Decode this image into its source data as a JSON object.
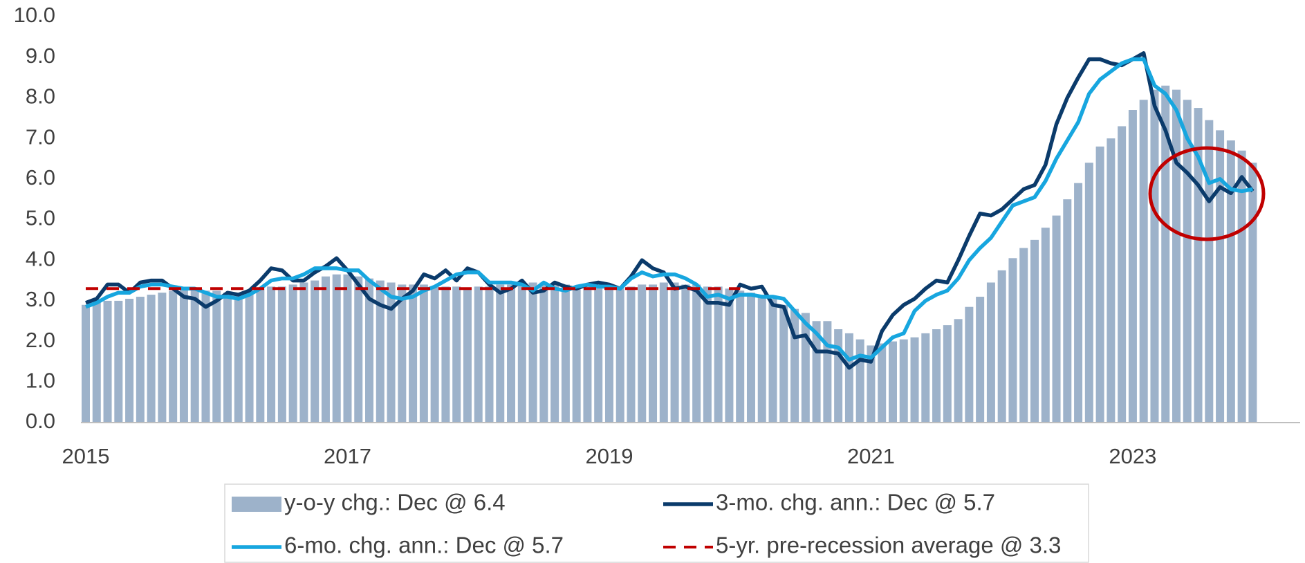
{
  "chart_data": {
    "type": "bar",
    "categories": [
      "2015",
      null,
      null,
      null,
      null,
      null,
      null,
      null,
      null,
      null,
      null,
      null,
      null,
      null,
      null,
      null,
      null,
      null,
      null,
      null,
      null,
      null,
      null,
      null,
      "2017",
      null,
      null,
      null,
      null,
      null,
      null,
      null,
      null,
      null,
      null,
      null,
      null,
      null,
      null,
      null,
      null,
      null,
      null,
      null,
      null,
      null,
      null,
      null,
      "2019",
      null,
      null,
      null,
      null,
      null,
      null,
      null,
      null,
      null,
      null,
      null,
      null,
      null,
      null,
      null,
      null,
      null,
      null,
      null,
      null,
      null,
      null,
      null,
      "2021",
      null,
      null,
      null,
      null,
      null,
      null,
      null,
      null,
      null,
      null,
      null,
      null,
      null,
      null,
      null,
      null,
      null,
      null,
      null,
      null,
      null,
      null,
      null,
      "2023",
      null,
      null,
      null,
      null,
      null,
      null,
      null,
      null,
      null,
      null,
      null
    ],
    "series": [
      {
        "name": "y-o-y chg.: Dec @ 6.4",
        "type": "bar",
        "color": "#9db2ca",
        "values": [
          2.9,
          2.95,
          3.0,
          3.0,
          3.05,
          3.1,
          3.15,
          3.2,
          3.25,
          3.3,
          3.3,
          3.25,
          3.25,
          3.2,
          3.2,
          3.25,
          3.3,
          3.35,
          3.35,
          3.4,
          3.45,
          3.5,
          3.6,
          3.65,
          3.65,
          3.6,
          3.55,
          3.5,
          3.45,
          3.4,
          3.4,
          3.4,
          3.35,
          3.35,
          3.35,
          3.3,
          3.35,
          3.35,
          3.4,
          3.4,
          3.45,
          3.45,
          3.45,
          3.4,
          3.4,
          3.35,
          3.35,
          3.35,
          3.35,
          3.35,
          3.35,
          3.4,
          3.4,
          3.45,
          3.45,
          3.4,
          3.4,
          3.35,
          3.35,
          3.3,
          3.25,
          3.2,
          3.15,
          3.05,
          2.9,
          2.8,
          2.7,
          2.5,
          2.5,
          2.3,
          2.2,
          2.05,
          1.9,
          1.95,
          2.0,
          2.05,
          2.1,
          2.2,
          2.3,
          2.4,
          2.55,
          2.85,
          3.1,
          3.45,
          3.75,
          4.05,
          4.3,
          4.5,
          4.8,
          5.1,
          5.5,
          5.9,
          6.4,
          6.8,
          7.0,
          7.3,
          7.7,
          7.95,
          8.2,
          8.3,
          8.2,
          7.95,
          7.75,
          7.45,
          7.2,
          6.95,
          6.7,
          6.4
        ]
      },
      {
        "name": "3-mo. chg. ann.: Dec @ 5.7",
        "type": "line",
        "color": "#0b3b6b",
        "values": [
          2.95,
          3.05,
          3.4,
          3.4,
          3.2,
          3.45,
          3.5,
          3.5,
          3.3,
          3.1,
          3.05,
          2.85,
          3.0,
          3.2,
          3.15,
          3.25,
          3.5,
          3.8,
          3.75,
          3.5,
          3.5,
          3.7,
          3.85,
          4.05,
          3.75,
          3.4,
          3.05,
          2.9,
          2.8,
          3.05,
          3.25,
          3.65,
          3.55,
          3.75,
          3.5,
          3.8,
          3.7,
          3.4,
          3.2,
          3.3,
          3.5,
          3.2,
          3.25,
          3.45,
          3.35,
          3.3,
          3.4,
          3.45,
          3.4,
          3.3,
          3.6,
          4.0,
          3.8,
          3.7,
          3.3,
          3.35,
          3.25,
          2.95,
          2.95,
          2.9,
          3.4,
          3.3,
          3.35,
          2.9,
          2.85,
          2.1,
          2.15,
          1.75,
          1.75,
          1.7,
          1.35,
          1.55,
          1.5,
          2.25,
          2.65,
          2.9,
          3.05,
          3.3,
          3.5,
          3.45,
          4.0,
          4.6,
          5.15,
          5.1,
          5.25,
          5.5,
          5.75,
          5.85,
          6.35,
          7.35,
          8.0,
          8.5,
          8.95,
          8.95,
          8.85,
          8.8,
          8.95,
          9.1,
          7.8,
          7.2,
          6.4,
          6.15,
          5.85,
          5.45,
          5.8,
          5.65,
          6.05,
          5.7
        ]
      },
      {
        "name": "6-mo. chg. ann.: Dec @ 5.7",
        "type": "line",
        "color": "#17a6df",
        "values": [
          2.85,
          2.95,
          3.1,
          3.2,
          3.2,
          3.35,
          3.4,
          3.4,
          3.35,
          3.3,
          3.3,
          3.2,
          3.1,
          3.1,
          3.05,
          3.15,
          3.3,
          3.5,
          3.55,
          3.55,
          3.65,
          3.8,
          3.8,
          3.8,
          3.75,
          3.75,
          3.5,
          3.3,
          3.1,
          3.05,
          3.1,
          3.25,
          3.35,
          3.5,
          3.65,
          3.7,
          3.7,
          3.45,
          3.45,
          3.45,
          3.4,
          3.25,
          3.45,
          3.3,
          3.25,
          3.35,
          3.4,
          3.35,
          3.35,
          3.3,
          3.55,
          3.7,
          3.6,
          3.65,
          3.65,
          3.55,
          3.4,
          3.1,
          3.15,
          3.05,
          3.15,
          3.15,
          3.1,
          3.1,
          3.05,
          2.75,
          2.45,
          2.2,
          1.9,
          1.85,
          1.55,
          1.65,
          1.6,
          1.85,
          2.1,
          2.2,
          2.75,
          3.0,
          3.15,
          3.25,
          3.55,
          4.0,
          4.3,
          4.55,
          4.95,
          5.35,
          5.45,
          5.55,
          5.95,
          6.5,
          6.95,
          7.4,
          8.1,
          8.45,
          8.65,
          8.85,
          8.95,
          8.95,
          8.3,
          8.1,
          7.7,
          7.0,
          6.55,
          5.9,
          6.0,
          5.75,
          5.7,
          5.75
        ]
      },
      {
        "name": "5-yr. pre-recession average @ 3.3",
        "type": "line",
        "dash": true,
        "color": "#c00000",
        "values": [
          3.3,
          3.3,
          3.3,
          3.3,
          3.3,
          3.3,
          3.3,
          3.3,
          3.3,
          3.3,
          3.3,
          3.3,
          3.3,
          3.3,
          3.3,
          3.3,
          3.3,
          3.3,
          3.3,
          3.3,
          3.3,
          3.3,
          3.3,
          3.3,
          3.3,
          3.3,
          3.3,
          3.3,
          3.3,
          3.3,
          3.3,
          3.3,
          3.3,
          3.3,
          3.3,
          3.3,
          3.3,
          3.3,
          3.3,
          3.3,
          3.3,
          3.3,
          3.3,
          3.3,
          3.3,
          3.3,
          3.3,
          3.3,
          3.3,
          3.3,
          3.3,
          3.3,
          3.3,
          3.3,
          3.3,
          3.3,
          3.3,
          3.3,
          3.3,
          3.3,
          3.3,
          null,
          null,
          null,
          null,
          null,
          null,
          null,
          null,
          null,
          null,
          null,
          null,
          null,
          null,
          null,
          null,
          null,
          null,
          null,
          null,
          null,
          null,
          null,
          null,
          null,
          null,
          null,
          null,
          null,
          null,
          null,
          null,
          null,
          null,
          null,
          null,
          null,
          null,
          null,
          null,
          null,
          null,
          null,
          null,
          null,
          null,
          null
        ]
      }
    ],
    "ylim": [
      0,
      10
    ],
    "yticks": [
      {
        "value": 0,
        "label": "0.0"
      },
      {
        "value": 1,
        "label": "1.0"
      },
      {
        "value": 2,
        "label": "2.0"
      },
      {
        "value": 3,
        "label": "3.0"
      },
      {
        "value": 4,
        "label": "4.0"
      },
      {
        "value": 5,
        "label": "5.0"
      },
      {
        "value": 6,
        "label": "6.0"
      },
      {
        "value": 7,
        "label": "7.0"
      },
      {
        "value": 8,
        "label": "8.0"
      },
      {
        "value": 9,
        "label": "9.0"
      },
      {
        "value": 10,
        "label": "10.0"
      }
    ],
    "grid": false,
    "legend": "bottom"
  }
}
